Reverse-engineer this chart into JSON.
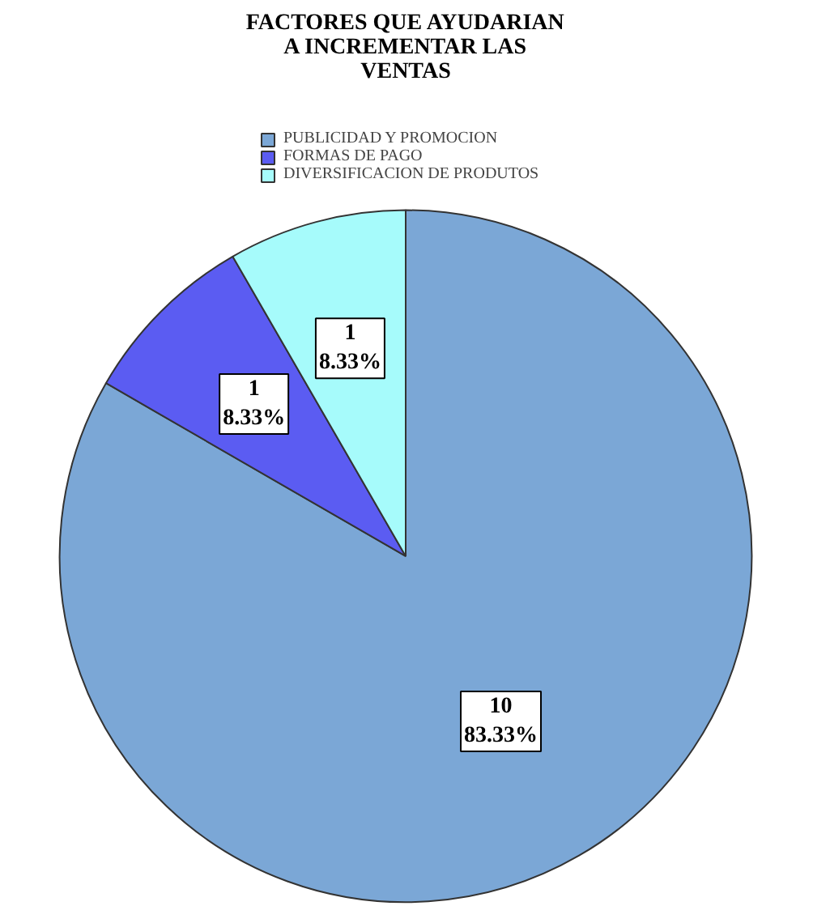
{
  "chart_data": {
    "type": "pie",
    "title": "FACTORES QUE AYUDARIAN\nA INCREMENTAR LAS\nVENTAS",
    "categories": [
      "PUBLICIDAD Y PROMOCION",
      "FORMAS DE PAGO",
      "DIVERSIFICACION DE PRODUTOS"
    ],
    "values": [
      10,
      1,
      1
    ],
    "colors": [
      "#7ba7d6",
      "#5b5cf2",
      "#a6fbfb"
    ],
    "value_labels": [
      "10\n83.33%",
      "1\n8.33%",
      "1\n8.33%"
    ],
    "legend": "top"
  }
}
